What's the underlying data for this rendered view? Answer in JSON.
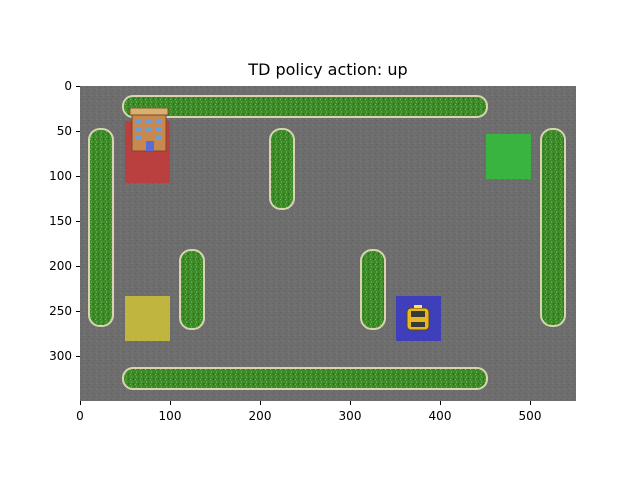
{
  "title": "TD policy action: up",
  "chart_data": {
    "type": "image",
    "xlim": [
      0,
      550
    ],
    "ylim": [
      350,
      0
    ],
    "x_ticks": [
      "0",
      "100",
      "200",
      "300",
      "400",
      "500"
    ],
    "y_ticks": [
      "0",
      "50",
      "100",
      "150",
      "200",
      "250",
      "300"
    ],
    "grid": false
  },
  "scene": {
    "road_color": "#6e6e6e",
    "hedge_color": "#3f8a2a",
    "hedge_border": "#d8d4b0",
    "locations": [
      {
        "name": "red",
        "color": "#c23a3a"
      },
      {
        "name": "green",
        "color": "#33bb3c"
      },
      {
        "name": "yellow",
        "color": "#c8bd3a"
      },
      {
        "name": "blue",
        "color": "#3a3ac4"
      }
    ],
    "taxi_icon": "taxi-icon",
    "hotel_icon": "hotel-building-icon",
    "action": "up"
  }
}
